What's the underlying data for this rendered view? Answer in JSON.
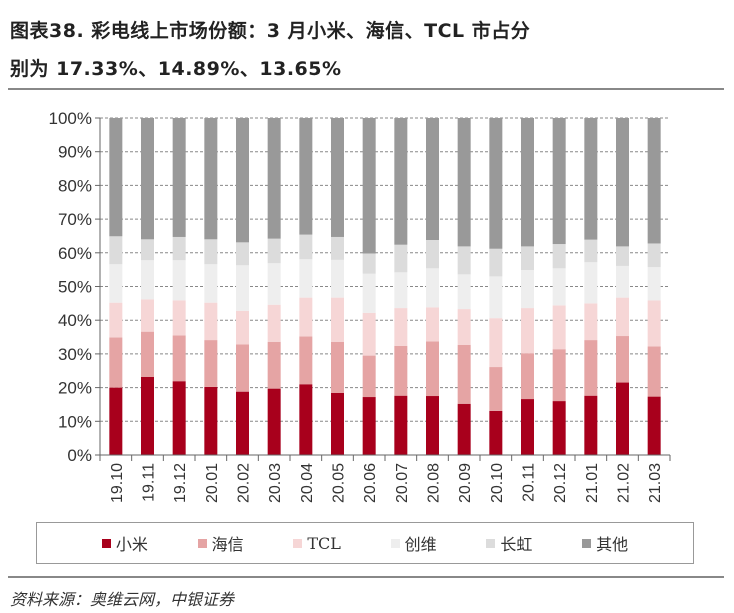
{
  "title": {
    "line1": "图表38. 彩电线上市场份额：3 月小米、海信、TCL 市占分",
    "line2": "别为 17.33%、14.89%、13.65%"
  },
  "source": "资料来源：奥维云网，中银证券",
  "chart_data": {
    "type": "bar",
    "stacked": true,
    "title": "",
    "xlabel": "",
    "ylabel": "",
    "ylim": [
      0,
      100
    ],
    "y_ticks": [
      "0%",
      "10%",
      "20%",
      "30%",
      "40%",
      "50%",
      "60%",
      "70%",
      "80%",
      "90%",
      "100%"
    ],
    "grid": "horizontal dashed",
    "legend_position": "bottom",
    "categories": [
      "19.10",
      "19.11",
      "19.12",
      "20.01",
      "20.02",
      "20.03",
      "20.04",
      "20.05",
      "20.06",
      "20.07",
      "20.08",
      "20.09",
      "20.10",
      "20.11",
      "20.12",
      "21.01",
      "21.02",
      "21.03"
    ],
    "series": [
      {
        "name": "小米",
        "color": "#A8001C",
        "values": [
          20.0,
          23.2,
          21.9,
          20.2,
          18.8,
          19.7,
          21.0,
          18.4,
          17.2,
          17.6,
          17.5,
          15.2,
          13.1,
          16.6,
          16.0,
          17.6,
          21.5,
          17.33
        ]
      },
      {
        "name": "海信",
        "color": "#E5A4A4",
        "values": [
          14.9,
          13.4,
          13.6,
          13.9,
          14.0,
          13.9,
          14.2,
          15.2,
          12.3,
          14.8,
          16.2,
          17.5,
          13.0,
          13.6,
          15.4,
          16.5,
          13.8,
          14.89
        ]
      },
      {
        "name": "TCL",
        "color": "#F6D6D6",
        "values": [
          10.3,
          9.6,
          10.4,
          11.1,
          10.0,
          11.0,
          11.5,
          13.1,
          12.7,
          11.2,
          10.1,
          10.6,
          14.5,
          13.4,
          13.0,
          10.9,
          11.4,
          13.65
        ]
      },
      {
        "name": "创维",
        "color": "#EEEEEE",
        "values": [
          11.4,
          11.6,
          11.9,
          11.4,
          13.5,
          12.3,
          11.4,
          11.2,
          11.6,
          10.6,
          11.6,
          10.3,
          12.4,
          11.3,
          11.0,
          12.2,
          9.4,
          9.9
        ]
      },
      {
        "name": "长虹",
        "color": "#DCDCDC",
        "values": [
          8.3,
          6.2,
          6.9,
          7.4,
          6.8,
          7.3,
          7.3,
          6.8,
          6.0,
          8.2,
          8.4,
          8.3,
          8.2,
          7.0,
          7.2,
          6.7,
          5.8,
          7.0
        ]
      },
      {
        "name": "其他",
        "color": "#999999",
        "values": [
          35.1,
          36.0,
          35.3,
          36.0,
          36.9,
          35.8,
          34.6,
          35.3,
          40.2,
          37.6,
          36.2,
          38.1,
          38.8,
          38.1,
          37.4,
          36.1,
          38.1,
          37.23
        ]
      }
    ]
  }
}
